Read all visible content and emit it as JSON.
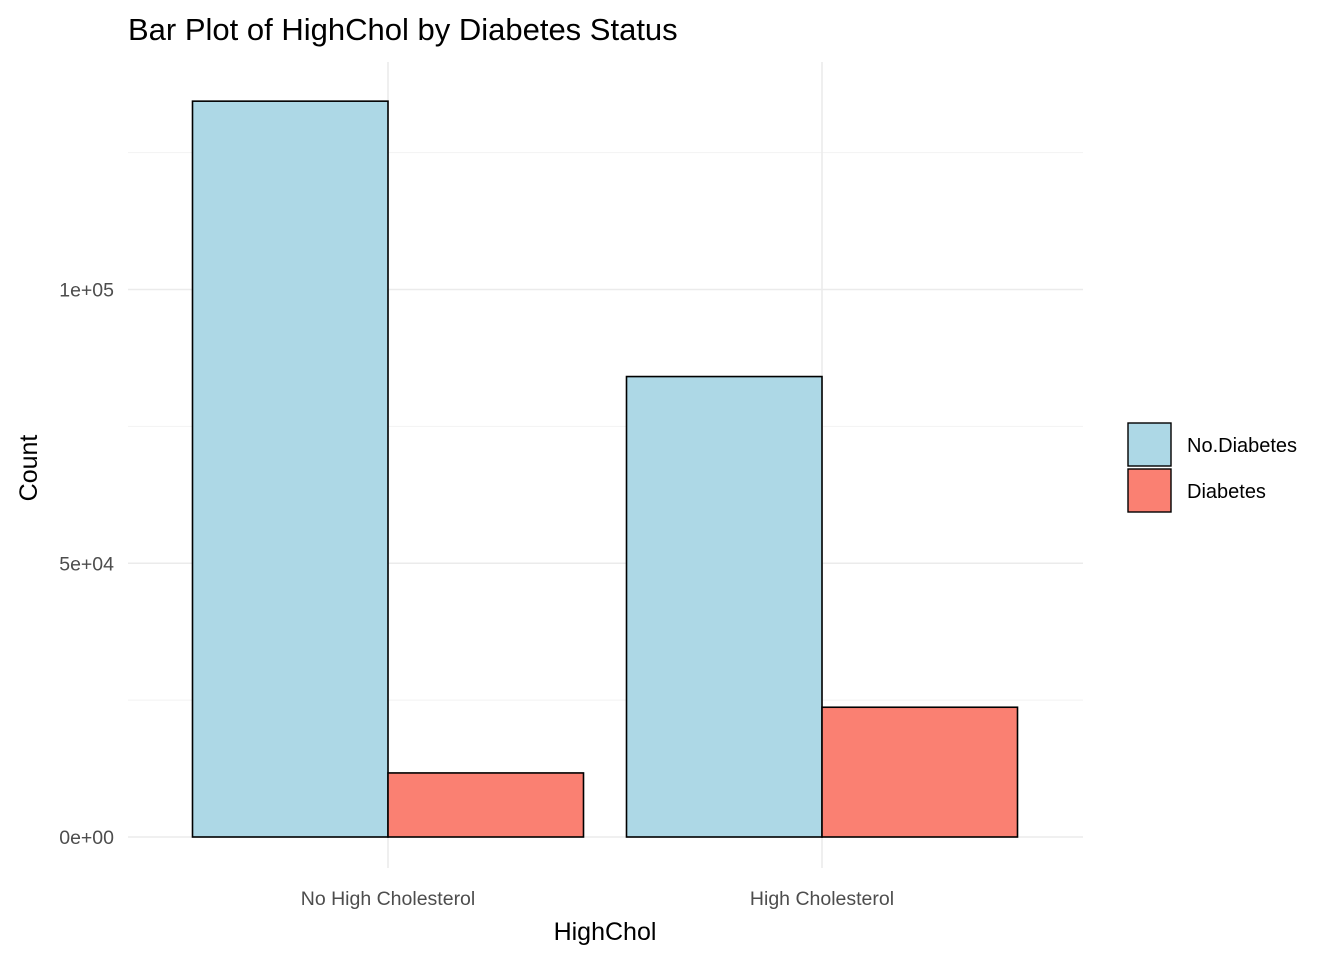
{
  "chart_data": {
    "type": "bar",
    "title": "Bar Plot of HighChol by Diabetes Status",
    "xlabel": "HighChol",
    "ylabel": "Count",
    "categories": [
      "No High Cholesterol",
      "High Cholesterol"
    ],
    "series": [
      {
        "name": "No.Diabetes",
        "color": "#add8e6",
        "values": [
          134400,
          84100
        ]
      },
      {
        "name": "Diabetes",
        "color": "#fa8072",
        "values": [
          11700,
          23700
        ]
      }
    ],
    "ylim": [
      0,
      140000
    ],
    "yticks": [
      {
        "value": 0,
        "label": "0e+00"
      },
      {
        "value": 50000,
        "label": "5e+04"
      },
      {
        "value": 100000,
        "label": "1e+05"
      }
    ],
    "yminor": [
      25000,
      75000,
      125000
    ],
    "grid": true,
    "legend_position": "right"
  }
}
